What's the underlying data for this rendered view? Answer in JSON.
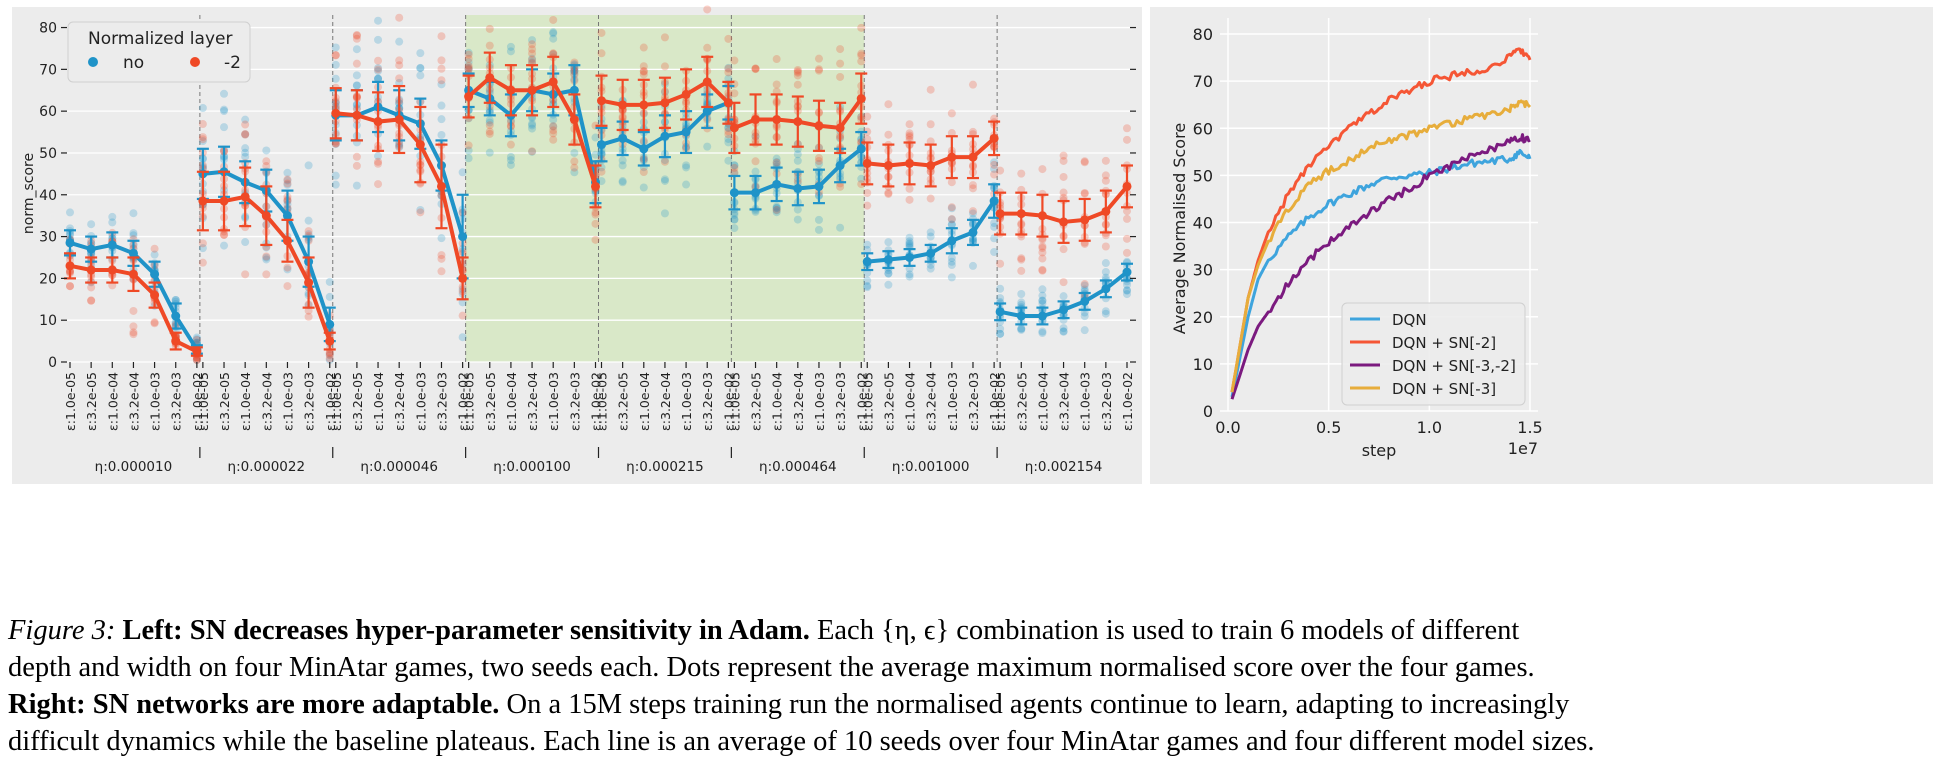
{
  "chart_data": [
    {
      "type": "line",
      "ylabel": "norm_score",
      "ylim": [
        0,
        83
      ],
      "yticks": [
        0,
        10,
        20,
        30,
        40,
        50,
        60,
        70,
        80
      ],
      "grid": true,
      "shaded_groups": [
        3,
        4,
        5
      ],
      "legend": {
        "title": "Normalized layer",
        "placement": "top-left"
      },
      "groups": [
        "η:0.000010",
        "η:0.000022",
        "η:0.000046",
        "η:0.000100",
        "η:0.000215",
        "η:0.000464",
        "η:0.001000",
        "η:0.002154"
      ],
      "categories": [
        "ε:1.0e-05",
        "ε:3.2e-05",
        "ε:1.0e-04",
        "ε:3.2e-04",
        "ε:1.0e-03",
        "ε:3.2e-03",
        "ε:1.0e-02"
      ],
      "series": [
        {
          "name": "no",
          "color": "#1f93c8",
          "values": [
            [
              28.5,
              27,
              28,
              26,
              21,
              11,
              3
            ],
            [
              45,
              45.5,
              43,
              41,
              35,
              24,
              9
            ],
            [
              59,
              59,
              61,
              59,
              57,
              47,
              30
            ],
            [
              65,
              63,
              59,
              65,
              64,
              65,
              43
            ],
            [
              52,
              53.5,
              51,
              54,
              55,
              60,
              62
            ],
            [
              40.5,
              40.5,
              42.5,
              41.5,
              42,
              47,
              51
            ],
            [
              24,
              24.5,
              25,
              26,
              29,
              31,
              38.5
            ],
            [
              12,
              11,
              11,
              12.5,
              14.5,
              17.5,
              21.5
            ]
          ],
          "err": [
            [
              3,
              3,
              3,
              3,
              3,
              3,
              1
            ],
            [
              6,
              6,
              5,
              5,
              6,
              6,
              4
            ],
            [
              6,
              6,
              6,
              6,
              6,
              6,
              10
            ],
            [
              4,
              4,
              5,
              5,
              5,
              6,
              5
            ],
            [
              4,
              4,
              4,
              5,
              5,
              4,
              4
            ],
            [
              4,
              4,
              4,
              4,
              4,
              4,
              4
            ],
            [
              2,
              2,
              2,
              2,
              3,
              3,
              4
            ],
            [
              2,
              2,
              2,
              2,
              2,
              2,
              2
            ]
          ]
        },
        {
          "name": "-2",
          "color": "#ef4926",
          "values": [
            [
              23,
              22,
              22,
              21,
              16,
              5,
              2.5
            ],
            [
              38.5,
              38.5,
              39.5,
              35,
              29,
              19,
              5
            ],
            [
              59.5,
              59,
              57.5,
              58,
              52,
              42,
              20
            ],
            [
              63.5,
              68,
              65,
              65,
              67,
              58,
              42
            ],
            [
              62.5,
              61.5,
              61.5,
              62,
              64,
              67,
              62
            ],
            [
              56,
              58,
              58,
              57.5,
              56.5,
              56,
              63
            ],
            [
              47.5,
              47,
              47.5,
              47,
              49,
              49,
              53.5
            ],
            [
              35.5,
              35.5,
              35,
              33.5,
              34,
              36,
              42
            ]
          ],
          "err": [
            [
              3,
              3,
              3,
              4,
              3,
              2,
              1
            ],
            [
              7,
              7,
              7,
              7,
              5,
              6,
              2
            ],
            [
              6,
              6,
              7,
              8,
              9,
              10,
              5
            ],
            [
              5,
              6,
              6,
              6,
              6,
              6,
              5
            ],
            [
              6,
              6,
              6,
              6,
              6,
              6,
              5
            ],
            [
              6,
              6,
              6,
              6,
              6,
              6,
              6
            ],
            [
              5,
              5,
              5,
              5,
              5,
              5,
              4
            ],
            [
              5,
              5,
              5,
              5,
              5,
              5,
              5
            ]
          ]
        }
      ]
    },
    {
      "type": "line",
      "xlabel": "step",
      "ylabel": "Average Normalised Score",
      "x_scale_note": "1e7",
      "xlim": [
        -0.1,
        1.53
      ],
      "ylim": [
        0,
        80
      ],
      "xticks": [
        0.0,
        0.5,
        1.0,
        1.5
      ],
      "xtick_labels": [
        "0.0",
        "0.5",
        "1.0",
        "1.5"
      ],
      "yticks": [
        0,
        10,
        20,
        30,
        40,
        50,
        60,
        70,
        80
      ],
      "grid": true,
      "legend_placement": "bottom-right",
      "series": [
        {
          "name": "DQN",
          "color": "#3ea4dd",
          "x": [
            0.02,
            0.1,
            0.15,
            0.2,
            0.3,
            0.4,
            0.5,
            0.6,
            0.7,
            0.8,
            0.9,
            1.0,
            1.1,
            1.2,
            1.3,
            1.4,
            1.45,
            1.5
          ],
          "y": [
            3,
            20,
            28,
            32,
            37,
            41,
            44,
            46,
            48,
            49.5,
            50,
            50.5,
            51.5,
            52.5,
            53,
            53.5,
            55,
            53.5
          ]
        },
        {
          "name": "DQN + SN[-2]",
          "color": "#f55635",
          "x": [
            0.02,
            0.1,
            0.15,
            0.2,
            0.3,
            0.4,
            0.5,
            0.6,
            0.7,
            0.8,
            0.9,
            1.0,
            1.1,
            1.2,
            1.3,
            1.4,
            1.45,
            1.5
          ],
          "y": [
            4,
            24,
            32,
            38,
            46,
            52,
            56,
            60,
            63,
            66,
            68,
            70,
            71,
            72,
            73,
            75,
            77,
            74.5
          ]
        },
        {
          "name": "DQN + SN[-3,-2]",
          "color": "#7b1a7f",
          "x": [
            0.02,
            0.1,
            0.15,
            0.2,
            0.3,
            0.4,
            0.5,
            0.6,
            0.7,
            0.8,
            0.9,
            1.0,
            1.1,
            1.2,
            1.3,
            1.4,
            1.45,
            1.5
          ],
          "y": [
            2.5,
            13,
            18,
            21,
            27,
            32,
            36,
            39,
            42,
            45,
            47,
            50,
            52,
            54,
            55.5,
            57,
            58,
            57.5
          ]
        },
        {
          "name": "DQN + SN[-3]",
          "color": "#e7ad3b",
          "x": [
            0.02,
            0.1,
            0.15,
            0.2,
            0.3,
            0.4,
            0.5,
            0.6,
            0.7,
            0.8,
            0.9,
            1.0,
            1.1,
            1.2,
            1.3,
            1.4,
            1.45,
            1.5
          ],
          "y": [
            4,
            24,
            31,
            36,
            43,
            48,
            51,
            53,
            56,
            57.5,
            58.5,
            60,
            61,
            62,
            63,
            64,
            65.5,
            64.5
          ]
        }
      ]
    }
  ],
  "caption": {
    "label": "Figure 3:",
    "left_title": "Left: SN decreases hyper-parameter sensitivity in Adam.",
    "left_text_a": " Each {η, ϵ} combination is used to train 6 models of different",
    "left_text_b": "depth and width on four MinAtar games, two seeds each. Dots represent the average maximum normalised score over the four games.",
    "right_title": "Right: SN networks are more adaptable.",
    "right_text_a": " On a 15M steps training run the normalised agents continue to learn, adapting to increasingly",
    "right_text_b": "difficult dynamics while the baseline plateaus. Each line is an average of 10 seeds over four MinAtar games and four different model sizes."
  }
}
